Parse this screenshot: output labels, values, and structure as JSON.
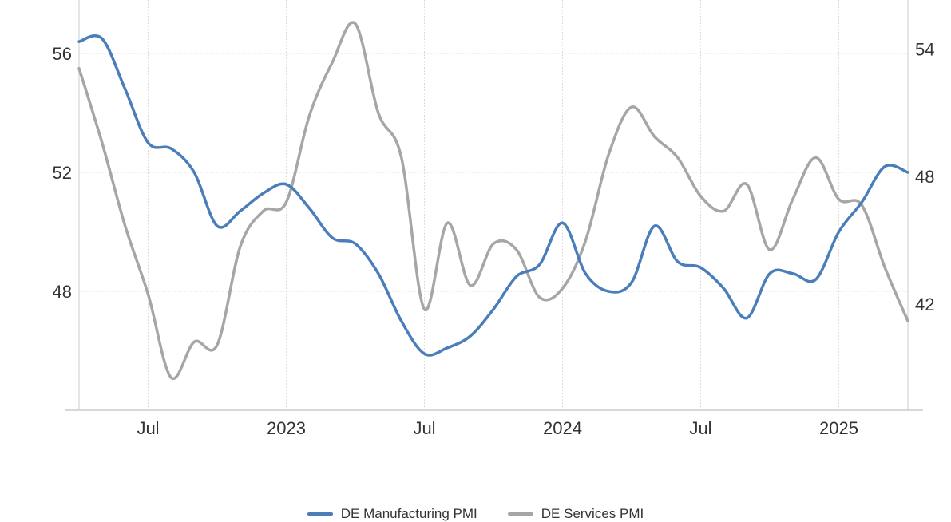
{
  "chart_data": {
    "type": "line",
    "title": "",
    "x_axis": {
      "ticks": [
        "Jul",
        "2023",
        "Jul",
        "2024",
        "Jul",
        "2025"
      ]
    },
    "y_axis_left": {
      "range": [
        44,
        57.8
      ],
      "ticks": [
        48,
        52,
        56
      ]
    },
    "y_axis_right": {
      "range": [
        37,
        56.3
      ],
      "ticks": [
        42,
        48,
        54
      ]
    },
    "grid": true,
    "legend_position": "bottom-center",
    "series": [
      {
        "name": "DE Manufacturing PMI",
        "axis": "left",
        "color": "#4a7ebb",
        "x": [
          "2022-04",
          "2022-05",
          "2022-06",
          "2022-07",
          "2022-08",
          "2022-09",
          "2022-10",
          "2022-11",
          "2022-12",
          "2023-01",
          "2023-02",
          "2023-03",
          "2023-04",
          "2023-05",
          "2023-06",
          "2023-07",
          "2023-08",
          "2023-09",
          "2023-10",
          "2023-11",
          "2023-12",
          "2024-01",
          "2024-02",
          "2024-03",
          "2024-04",
          "2024-05",
          "2024-06",
          "2024-07",
          "2024-08",
          "2024-09",
          "2024-10",
          "2024-11",
          "2024-12",
          "2025-01",
          "2025-02",
          "2025-03",
          "2025-04"
        ],
        "values": [
          56.4,
          56.5,
          54.8,
          53.0,
          52.8,
          52.0,
          50.2,
          50.7,
          51.3,
          51.6,
          50.8,
          49.8,
          49.6,
          48.6,
          47.0,
          45.9,
          46.1,
          46.5,
          47.4,
          48.5,
          48.9,
          50.3,
          48.6,
          48.0,
          48.3,
          50.2,
          49.0,
          48.8,
          48.1,
          47.1,
          48.6,
          48.6,
          48.4,
          50.0,
          51.0,
          52.2,
          52.0
        ]
      },
      {
        "name": "DE Services PMI",
        "axis": "left",
        "color": "#a6a6a6",
        "x": [
          "2022-04",
          "2022-05",
          "2022-06",
          "2022-07",
          "2022-08",
          "2022-09",
          "2022-10",
          "2022-11",
          "2022-12",
          "2023-01",
          "2023-02",
          "2023-03",
          "2023-04",
          "2023-05",
          "2023-06",
          "2023-07",
          "2023-08",
          "2023-09",
          "2023-10",
          "2023-11",
          "2023-12",
          "2024-01",
          "2024-02",
          "2024-03",
          "2024-04",
          "2024-05",
          "2024-06",
          "2024-07",
          "2024-08",
          "2024-09",
          "2024-10",
          "2024-11",
          "2024-12",
          "2025-01",
          "2025-02",
          "2025-03",
          "2025-04"
        ],
        "values": [
          55.5,
          53.0,
          50.2,
          47.9,
          45.1,
          46.3,
          46.2,
          49.5,
          50.7,
          51.0,
          53.9,
          55.7,
          57.0,
          54.0,
          52.5,
          47.4,
          50.3,
          48.2,
          49.6,
          49.4,
          47.8,
          48.1,
          49.7,
          52.6,
          54.2,
          53.2,
          52.5,
          51.2,
          50.7,
          51.6,
          49.4,
          51.1,
          52.5,
          51.1,
          50.9,
          48.8,
          47.0
        ]
      }
    ]
  }
}
